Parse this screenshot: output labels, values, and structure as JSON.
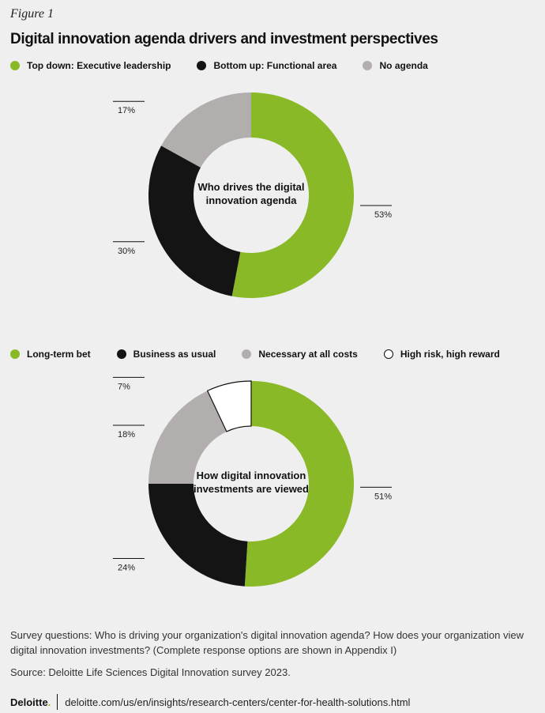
{
  "figure_label": "Figure 1",
  "title": "Digital innovation agenda drivers and investment perspectives",
  "colors": {
    "green": "#8ab928",
    "black": "#141414",
    "gray": "#b2aeae",
    "white": "#ffffff"
  },
  "chart_data": [
    {
      "type": "pie",
      "center_label": [
        "Who drives the digital",
        "innovation agenda"
      ],
      "legend": [
        {
          "label": "Top down: Executive leadership",
          "color": "green"
        },
        {
          "label": "Bottom up: Functional area",
          "color": "black"
        },
        {
          "label": "No agenda",
          "color": "gray"
        }
      ],
      "slices": [
        {
          "label": "Top down: Executive leadership",
          "value": 53,
          "text": "53%",
          "color": "green"
        },
        {
          "label": "Bottom up: Functional area",
          "value": 30,
          "text": "30%",
          "color": "black"
        },
        {
          "label": "No agenda",
          "value": 17,
          "text": "17%",
          "color": "gray"
        }
      ]
    },
    {
      "type": "pie",
      "center_label": [
        "How digital innovation",
        "investments are viewed"
      ],
      "legend": [
        {
          "label": "Long-term bet",
          "color": "green"
        },
        {
          "label": "Business as usual",
          "color": "black"
        },
        {
          "label": "Necessary at all costs",
          "color": "gray"
        },
        {
          "label": "High risk, high reward",
          "color": "white"
        }
      ],
      "slices": [
        {
          "label": "Long-term bet",
          "value": 51,
          "text": "51%",
          "color": "green"
        },
        {
          "label": "Business as usual",
          "value": 24,
          "text": "24%",
          "color": "black"
        },
        {
          "label": "Necessary at all costs",
          "value": 18,
          "text": "18%",
          "color": "gray"
        },
        {
          "label": "High risk, high reward",
          "value": 7,
          "text": "7%",
          "color": "white"
        }
      ]
    }
  ],
  "notes": {
    "survey": "Survey questions: Who is driving your organization's digital innovation agenda? How does your organization view digital innovation investments? (Complete response options are shown in Appendix I)",
    "source": "Source: Deloitte Life Sciences Digital Innovation survey 2023."
  },
  "brand": {
    "name": "Deloitte",
    "dot": ".",
    "url": "deloitte.com/us/en/insights/research-centers/center-for-health-solutions.html"
  }
}
